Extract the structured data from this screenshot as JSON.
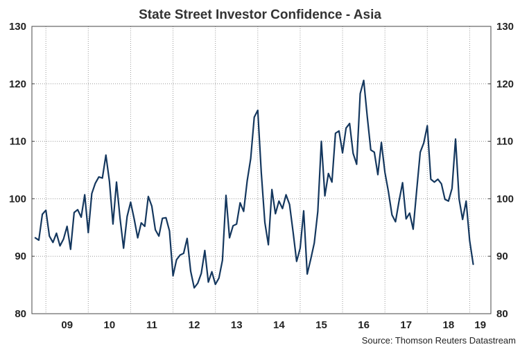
{
  "chart_data": {
    "type": "line",
    "title": "State Street Investor Confidence - Asia",
    "source": "Source: Thomson Reuters Datastream",
    "ylim": [
      80,
      130
    ],
    "yticks": [
      80,
      90,
      100,
      110,
      120,
      130
    ],
    "ytick_labels": [
      "80",
      "90",
      "100",
      "110",
      "120",
      "130"
    ],
    "xlim": [
      2008.67,
      2019.5
    ],
    "year_labels": [
      "09",
      "10",
      "11",
      "12",
      "13",
      "14",
      "15",
      "16",
      "17",
      "18",
      "19"
    ],
    "year_label_centers": [
      2009.5,
      2010.5,
      2011.5,
      2012.5,
      2013.5,
      2014.5,
      2015.5,
      2016.5,
      2017.5,
      2018.5,
      2019.25
    ],
    "year_boundaries": [
      2009,
      2010,
      2011,
      2012,
      2013,
      2014,
      2015,
      2016,
      2017,
      2018,
      2019
    ],
    "grid": true,
    "line_color": "#14375e",
    "series": [
      {
        "name": "",
        "start": 2008.75,
        "step": 0.08333,
        "values": [
          93.2,
          92.8,
          97.3,
          98.0,
          93.5,
          92.4,
          94.0,
          91.8,
          93.0,
          95.2,
          91.2,
          97.6,
          98.1,
          96.8,
          100.7,
          94.1,
          100.9,
          102.7,
          103.8,
          103.6,
          107.6,
          103.0,
          95.6,
          102.9,
          96.6,
          91.4,
          96.9,
          99.4,
          96.5,
          93.2,
          95.8,
          95.2,
          100.4,
          98.7,
          94.6,
          93.5,
          96.6,
          96.7,
          94.4,
          86.6,
          89.4,
          90.2,
          90.5,
          93.1,
          87.4,
          84.5,
          85.3,
          87.0,
          91.0,
          85.5,
          87.3,
          85.1,
          86.2,
          89.3,
          100.6,
          93.2,
          95.3,
          95.6,
          99.3,
          97.8,
          103.1,
          107.0,
          114.2,
          115.4,
          104.5,
          95.9,
          92.0,
          101.6,
          97.4,
          99.6,
          98.3,
          100.7,
          99.0,
          94.2,
          89.1,
          91.4,
          97.9,
          86.9,
          89.5,
          92.3,
          97.8,
          110.0,
          100.5,
          104.4,
          102.9,
          111.4,
          111.8,
          108.0,
          112.3,
          113.1,
          107.9,
          106.0,
          118.3,
          120.6,
          114.3,
          108.5,
          108.1,
          104.2,
          109.8,
          104.6,
          101.2,
          97.2,
          96.0,
          99.6,
          102.8,
          96.5,
          97.5,
          94.7,
          101.5,
          108.1,
          109.7,
          112.7,
          103.4,
          102.9,
          103.4,
          102.6,
          99.9,
          99.6,
          101.8,
          110.4,
          100.0,
          96.4,
          99.6,
          92.7,
          88.6
        ]
      }
    ]
  }
}
